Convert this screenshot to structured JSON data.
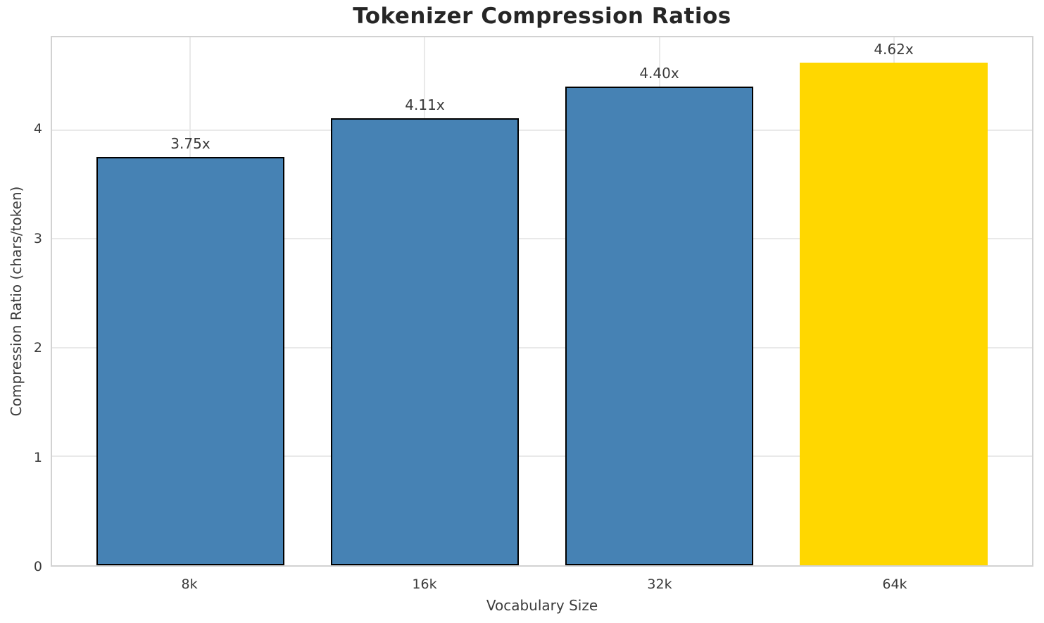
{
  "figure": {
    "background": "#ffffff"
  },
  "chart_data": {
    "type": "bar",
    "title": "Tokenizer Compression Ratios",
    "xlabel": "Vocabulary Size",
    "ylabel": "Compression Ratio (chars/token)",
    "categories": [
      "8k",
      "16k",
      "32k",
      "64k"
    ],
    "values": [
      3.75,
      4.11,
      4.4,
      4.62
    ],
    "value_labels": [
      "3.75x",
      "4.11x",
      "4.40x",
      "4.62x"
    ],
    "bar_colors": [
      "#4682B4",
      "#4682B4",
      "#4682B4",
      "#FFD700"
    ],
    "bar_edge_colors": [
      "#000000",
      "#000000",
      "#000000",
      "none"
    ],
    "yticks": [
      0,
      1,
      2,
      3,
      4
    ],
    "ylim": [
      0,
      4.851
    ],
    "bar_width": 0.8,
    "grid": true,
    "legend_position": "none",
    "colors": {
      "grid": "#e9e9e9",
      "spine": "#d2d2d2",
      "tick_text": "#3b3b3b",
      "label_text": "#3b3b3b",
      "value_text": "#3b3b3b",
      "title_text": "#262626"
    }
  }
}
